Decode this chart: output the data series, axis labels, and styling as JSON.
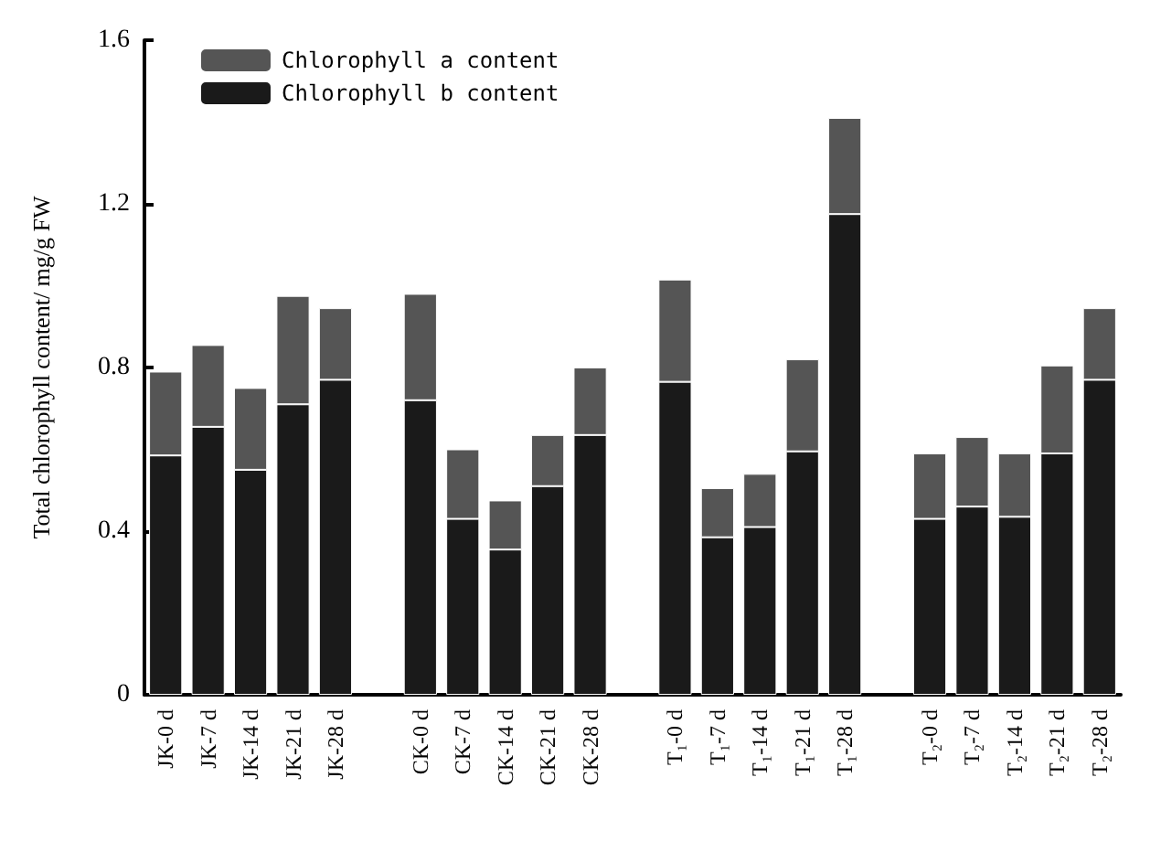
{
  "chart_data": {
    "type": "bar",
    "stacked": true,
    "ylabel": "Total chlorophyll content/ mg/g FW",
    "categories": [
      "JK-0 d",
      "JK-7 d",
      "JK-14 d",
      "JK-21 d",
      "JK-28 d",
      null,
      "CK-0 d",
      "CK-7 d",
      "CK-14 d",
      "CK-21 d",
      "CK-28 d",
      null,
      "T₁-0 d",
      "T₁-7 d",
      "T₁-14 d",
      "T₁-21 d",
      "T₁-28 d",
      null,
      "T₂-0 d",
      "T₂-7 d",
      "T₂-14 d",
      "T₂-21 d",
      "T₂-28 d"
    ],
    "series": [
      {
        "name": "Chlorophyll b content",
        "color": "#1a1a1a",
        "values": [
          0.585,
          0.655,
          0.55,
          0.71,
          0.77,
          null,
          0.72,
          0.43,
          0.355,
          0.51,
          0.635,
          null,
          0.765,
          0.385,
          0.41,
          0.595,
          1.175,
          null,
          0.43,
          0.46,
          0.435,
          0.59,
          0.77
        ]
      },
      {
        "name": "Chlorophyll a content",
        "color": "#555555",
        "values": [
          0.205,
          0.2,
          0.2,
          0.265,
          0.175,
          null,
          0.26,
          0.17,
          0.12,
          0.125,
          0.165,
          null,
          0.25,
          0.12,
          0.13,
          0.225,
          0.235,
          null,
          0.16,
          0.17,
          0.155,
          0.215,
          0.175
        ]
      }
    ],
    "ylim": [
      0,
      1.6
    ],
    "yticks": [
      0,
      0.4,
      0.8,
      1.2,
      1.6
    ],
    "grid": false,
    "legend": "top left"
  }
}
